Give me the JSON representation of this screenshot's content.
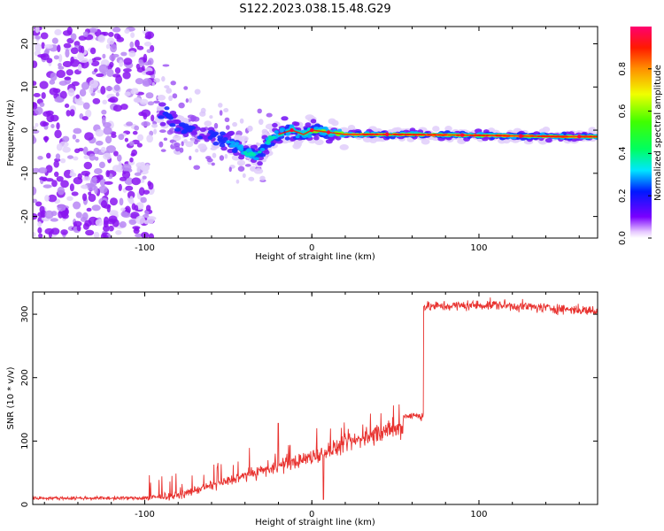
{
  "title": "S122.2023.038.15.48.G29",
  "chart_data": [
    {
      "type": "heatmap",
      "xlabel": "Height of straight line (km)",
      "ylabel": "Frequency (Hz)",
      "xlim": [
        -167,
        171
      ],
      "ylim": [
        -25,
        24
      ],
      "xticks": [
        -100,
        0,
        100
      ],
      "yticks": [
        -20,
        -10,
        0,
        10,
        20
      ],
      "colorbar": {
        "label": "Normalized spectral amplitude",
        "range": [
          0,
          1
        ],
        "ticks": [
          "0.0",
          "0.2",
          "0.4",
          "0.6",
          "0.8"
        ],
        "colormap": "gist_rainbow (violet to red)"
      },
      "ridge": {
        "x": [
          -88,
          -80,
          -70,
          -60,
          -50,
          -40,
          -33,
          -25,
          -20,
          -12,
          -5,
          0,
          10,
          20,
          50,
          100,
          150,
          171
        ],
        "y": [
          4,
          0.5,
          0,
          -1,
          -3,
          -5,
          -6,
          -2,
          -1,
          0,
          -1,
          0,
          -0.5,
          -1,
          -1,
          -1.2,
          -1.5,
          -1.5
        ]
      },
      "noise_region_x": [
        -167,
        -95
      ]
    },
    {
      "type": "line",
      "xlabel": "Height of straight line (km)",
      "ylabel": "SNR (10 * v/v)",
      "xlim": [
        -167,
        171
      ],
      "ylim": [
        0,
        335
      ],
      "xticks": [
        -100,
        0,
        100
      ],
      "yticks": [
        0,
        100,
        200,
        300
      ],
      "color": "#e8322f",
      "segments": [
        {
          "x": [
            -167,
            -100
          ],
          "y": [
            10,
            10
          ]
        },
        {
          "x": [
            -100,
            -80
          ],
          "y": [
            10,
            14
          ]
        },
        {
          "x": [
            -80,
            -60
          ],
          "y": [
            14,
            30
          ]
        },
        {
          "x": [
            -60,
            -40
          ],
          "y": [
            30,
            45
          ]
        },
        {
          "x": [
            -40,
            -20
          ],
          "y": [
            45,
            60
          ]
        },
        {
          "x": [
            -20,
            0
          ],
          "y": [
            60,
            75
          ]
        },
        {
          "x": [
            0,
            20
          ],
          "y": [
            75,
            95
          ]
        },
        {
          "x": [
            20,
            40
          ],
          "y": [
            95,
            113
          ]
        },
        {
          "x": [
            40,
            55
          ],
          "y": [
            113,
            120
          ]
        },
        {
          "x": [
            55,
            67
          ],
          "y": [
            140,
            140
          ]
        },
        {
          "x": [
            67,
            110
          ],
          "y": [
            312,
            315
          ]
        },
        {
          "x": [
            110,
            171
          ],
          "y": [
            315,
            305
          ]
        }
      ],
      "events": [
        {
          "x": -20,
          "y": 128
        },
        {
          "x": 7,
          "y": 8
        },
        {
          "x": 55,
          "y": 140
        },
        {
          "x": 67,
          "y": 312
        }
      ]
    }
  ]
}
